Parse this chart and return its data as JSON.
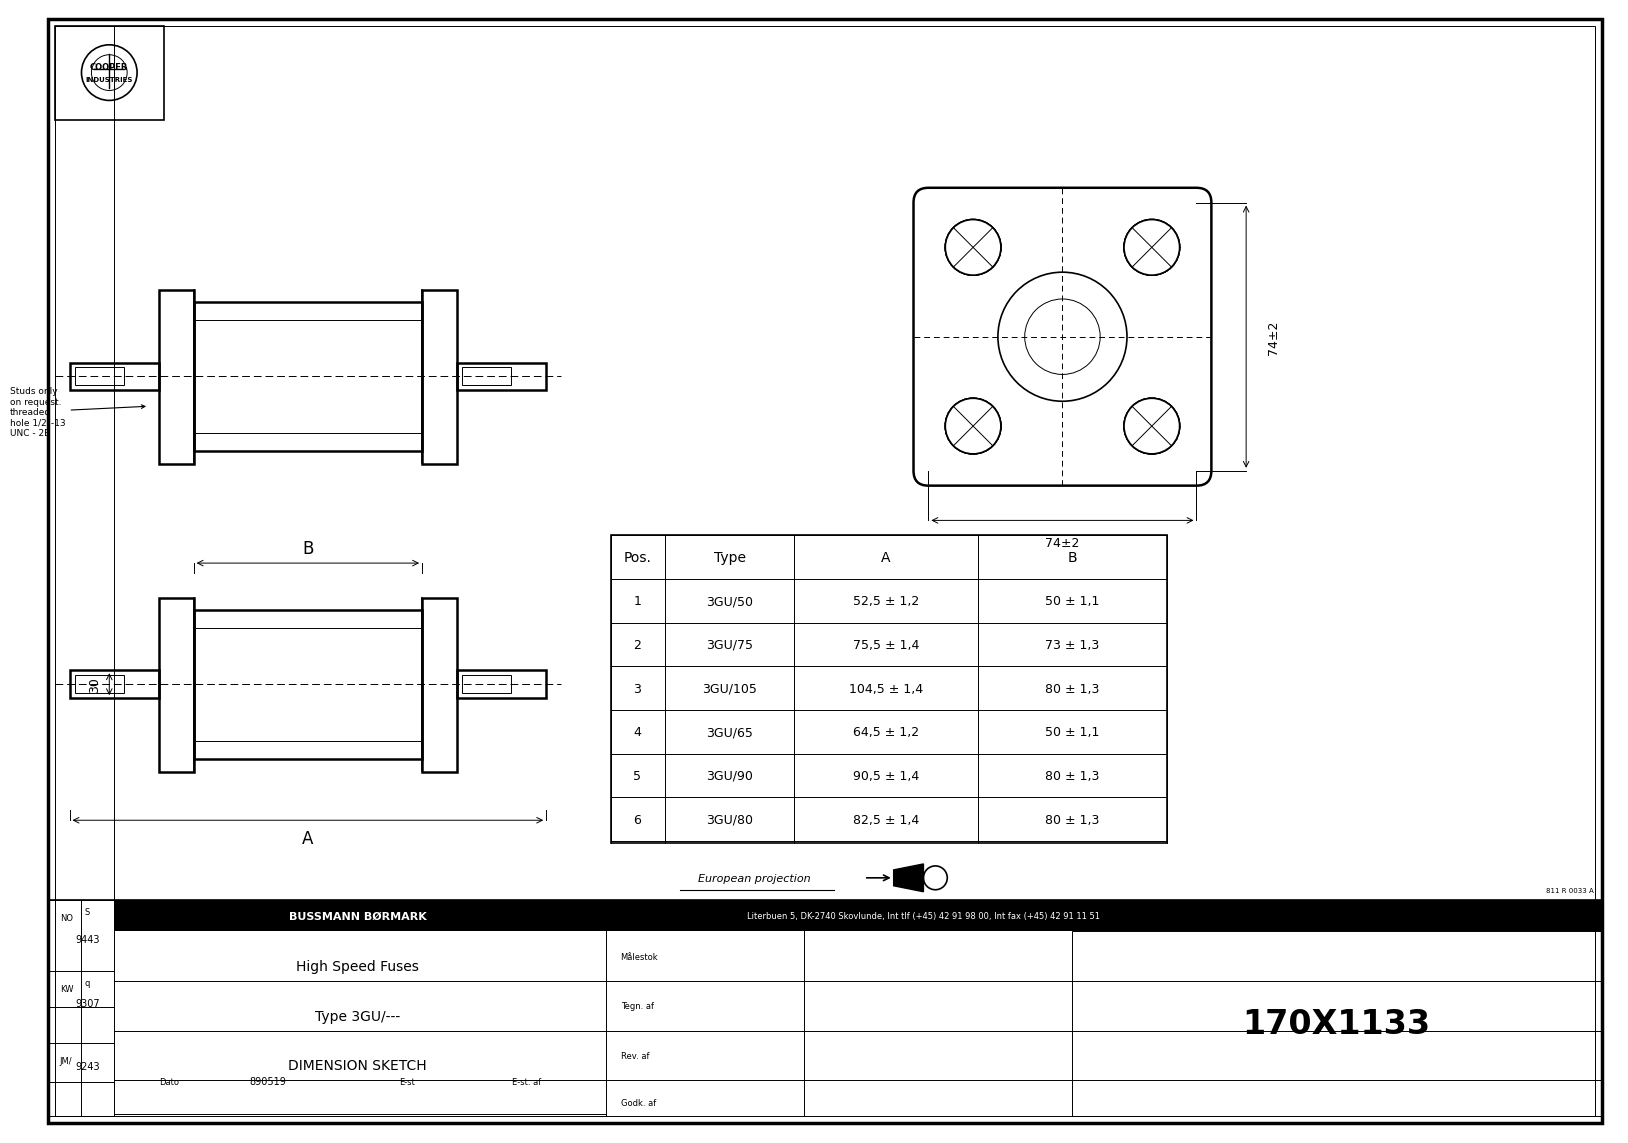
{
  "table_headers": [
    "Pos.",
    "Type",
    "A",
    "B"
  ],
  "table_rows": [
    [
      "1",
      "3GU/50",
      "52,5 ± 1,2",
      "50 ± 1,1"
    ],
    [
      "2",
      "3GU/75",
      "75,5 ± 1,4",
      "73 ± 1,3"
    ],
    [
      "3",
      "3GU/105",
      "104,5 ± 1,4",
      "80 ± 1,3"
    ],
    [
      "4",
      "3GU/65",
      "64,5 ± 1,2",
      "50 ± 1,1"
    ],
    [
      "5",
      "3GU/90",
      "90,5 ± 1,4",
      "80 ± 1,3"
    ],
    [
      "6",
      "3GU/80",
      "82,5 ± 1,4",
      "80 ± 1,3"
    ]
  ],
  "dim_74h": "74±2",
  "dim_74v": "74±2",
  "dim_A": "A",
  "dim_B": "B",
  "dim_30": "30",
  "stud_note": "Studs only\non request.\nthreaded\nhole 1/2\"-13\nUNC - 2B",
  "euro_proj": "European projection",
  "company_name": "BUSSMANN•BØRMARK",
  "address": "Literbuen 5, DK-2740 Skovlunde, Int tlf (+45) 42 91 98 00, Int fax (+45) 42 91 11 51",
  "prod_line1": "High Speed Fuses",
  "prod_line2": "Type 3GU/---",
  "prod_line3": "DIMENSION SKETCH",
  "scale_text": "170X1133",
  "date_text": "890519",
  "no_text": "9443",
  "kw_text": "9307",
  "jm_text": "9243",
  "ref_num": "811 R 0033 A"
}
